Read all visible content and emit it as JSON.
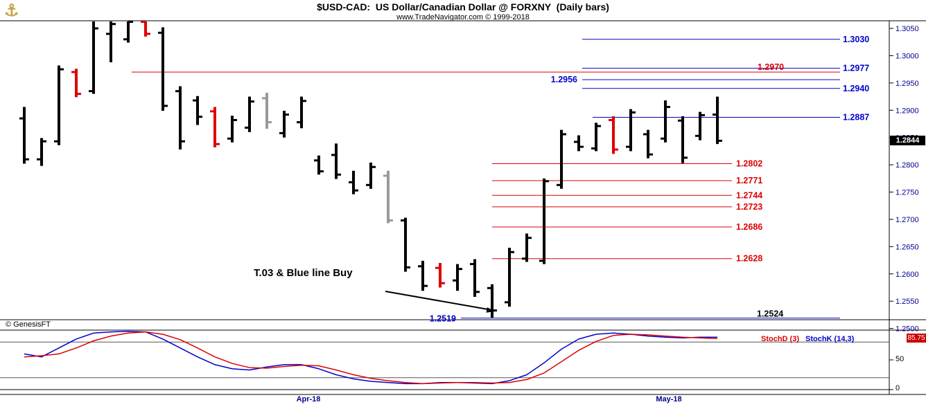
{
  "header": {
    "title": "$USD-CAD:  US Dollar/Canadian Dollar @ FORXNY  (Daily bars)",
    "subtitle": "www.TradeNavigator.com © 1999-2018"
  },
  "logo_icon": "⚓",
  "watermark": "© GenesisFT",
  "annotation": "T.03 & Blue line Buy",
  "price_badge": "1.2844",
  "stoch_panel": {
    "d_label": "StochD (3)",
    "k_label": "StochK (14,3)",
    "value": "85.75",
    "axis_labels": [
      "50",
      "0"
    ]
  },
  "x_axis_labels": [
    {
      "label": "Apr-18"
    },
    {
      "label": "May-18"
    }
  ],
  "y_axis_labels": [
    "1.3050",
    "1.3000",
    "1.2950",
    "1.2900",
    "1.2850",
    "1.2800",
    "1.2750",
    "1.2700",
    "1.2650",
    "1.2600",
    "1.2550",
    "1.2500"
  ],
  "colors": {
    "black_bar": "#000000",
    "red_bar": "#dd0000",
    "gray_bar": "#999999",
    "blue": "#0000cc",
    "red": "#dd0000",
    "axis_text": "#00008b",
    "price_badge_bg": "#000000",
    "stoch_badge_bg": "#cc0000"
  },
  "chart_data": [
    {
      "type": "ohlc-bar",
      "title": "$USD-CAD US Dollar/Canadian Dollar @ FORXNY (Daily bars)",
      "x_range": [
        "Apr-18",
        "May-18"
      ],
      "ylim": [
        1.2516,
        1.3064
      ],
      "bars_format": [
        "open",
        "high",
        "low",
        "close",
        "color(k=black,r=red,g=gray)"
      ],
      "bars": [
        [
          1.2885,
          1.2906,
          1.2802,
          1.281,
          "k"
        ],
        [
          1.281,
          1.2849,
          1.2798,
          1.2843,
          "k"
        ],
        [
          1.2843,
          1.2982,
          1.2836,
          1.2975,
          "k"
        ],
        [
          1.297,
          1.2976,
          1.2924,
          1.293,
          "r"
        ],
        [
          1.2935,
          1.3064,
          1.293,
          1.305,
          "k"
        ],
        [
          1.304,
          1.3064,
          1.2988,
          1.3058,
          "k"
        ],
        [
          1.303,
          1.3066,
          1.3024,
          1.3062,
          "k"
        ],
        [
          1.3062,
          1.3065,
          1.3035,
          1.304,
          "r"
        ],
        [
          1.3042,
          1.3052,
          1.2899,
          1.2908,
          "k"
        ],
        [
          1.2935,
          1.2944,
          1.2828,
          1.2843,
          "k"
        ],
        [
          1.2918,
          1.2926,
          1.2873,
          1.2888,
          "k"
        ],
        [
          1.2898,
          1.2906,
          1.2832,
          1.2838,
          "r"
        ],
        [
          1.2848,
          1.289,
          1.2841,
          1.2882,
          "k"
        ],
        [
          1.2868,
          1.2925,
          1.286,
          1.2916,
          "k"
        ],
        [
          1.2922,
          1.2932,
          1.2866,
          1.2878,
          "g"
        ],
        [
          1.2858,
          1.2899,
          1.285,
          1.2892,
          "k"
        ],
        [
          1.2878,
          1.2925,
          1.2867,
          1.2917,
          "k"
        ],
        [
          1.2808,
          1.2817,
          1.2782,
          1.2788,
          "k"
        ],
        [
          1.2818,
          1.2839,
          1.2774,
          1.2782,
          "k"
        ],
        [
          1.2768,
          1.2789,
          1.2746,
          1.2753,
          "k"
        ],
        [
          1.2763,
          1.2804,
          1.2756,
          1.2796,
          "k"
        ],
        [
          1.278,
          1.2789,
          1.2693,
          1.2698,
          "g"
        ],
        [
          1.2698,
          1.2703,
          1.2604,
          1.2612,
          "k"
        ],
        [
          1.2614,
          1.2624,
          1.2569,
          1.2578,
          "k"
        ],
        [
          1.2611,
          1.262,
          1.2575,
          1.2583,
          "r"
        ],
        [
          1.2588,
          1.2618,
          1.2569,
          1.2609,
          "k"
        ],
        [
          1.2618,
          1.2627,
          1.2558,
          1.2567,
          "k"
        ],
        [
          1.2574,
          1.2581,
          1.252,
          1.2533,
          "k"
        ],
        [
          1.2548,
          1.2648,
          1.254,
          1.264,
          "k"
        ],
        [
          1.2628,
          1.2674,
          1.2622,
          1.2666,
          "k"
        ],
        [
          1.2624,
          1.2775,
          1.2618,
          1.277,
          "k"
        ],
        [
          1.2763,
          1.2864,
          1.2756,
          1.2856,
          "k"
        ],
        [
          1.2842,
          1.2854,
          1.2825,
          1.2833,
          "k"
        ],
        [
          1.283,
          1.2877,
          1.2825,
          1.2871,
          "k"
        ],
        [
          1.2882,
          1.2889,
          1.282,
          1.2828,
          "r"
        ],
        [
          1.2833,
          1.2902,
          1.2825,
          1.2896,
          "k"
        ],
        [
          1.2856,
          1.2864,
          1.2812,
          1.2819,
          "k"
        ],
        [
          1.2848,
          1.2918,
          1.2841,
          1.2906,
          "k"
        ],
        [
          1.2881,
          1.2889,
          1.2803,
          1.2813,
          "k"
        ],
        [
          1.2853,
          1.2897,
          1.2845,
          1.2891,
          "k"
        ],
        [
          1.2892,
          1.2925,
          1.2838,
          1.2844,
          "k"
        ]
      ],
      "levels": [
        {
          "price": 1.303,
          "color": "blue",
          "x1": 840,
          "x2": 1212,
          "label": "1.3030",
          "label_x": 1216,
          "anchor": "start",
          "dy": 4
        },
        {
          "price": 1.2977,
          "color": "blue",
          "x1": 840,
          "x2": 1212,
          "label": "1.2977",
          "label_x": 1216,
          "anchor": "start",
          "dy": 4
        },
        {
          "price": 1.297,
          "color": "red",
          "x1": 190,
          "x2": 1212,
          "label": "1.2970",
          "label_x": 1112,
          "anchor": "middle",
          "dy": -3
        },
        {
          "price": 1.2956,
          "color": "blue",
          "x1": 840,
          "x2": 1212,
          "label": "1.2956",
          "label_x": 833,
          "anchor": "end",
          "dy": 4
        },
        {
          "price": 1.294,
          "color": "blue",
          "x1": 840,
          "x2": 1212,
          "label": "1.2940",
          "label_x": 1216,
          "anchor": "start",
          "dy": 4
        },
        {
          "price": 1.2887,
          "color": "blue",
          "x1": 855,
          "x2": 1212,
          "label": "1.2887",
          "label_x": 1216,
          "anchor": "start",
          "dy": 4
        },
        {
          "price": 1.2802,
          "color": "red",
          "x1": 710,
          "x2": 1056,
          "label": "1.2802",
          "label_x": 1062,
          "anchor": "start",
          "dy": 4
        },
        {
          "price": 1.2771,
          "color": "red",
          "x1": 710,
          "x2": 1056,
          "label": "1.2771",
          "label_x": 1062,
          "anchor": "start",
          "dy": 4
        },
        {
          "price": 1.2744,
          "color": "red",
          "x1": 710,
          "x2": 1056,
          "label": "1.2744",
          "label_x": 1062,
          "anchor": "start",
          "dy": 4
        },
        {
          "price": 1.2723,
          "color": "red",
          "x1": 710,
          "x2": 1056,
          "label": "1.2723",
          "label_x": 1062,
          "anchor": "start",
          "dy": 4
        },
        {
          "price": 1.2686,
          "color": "red",
          "x1": 710,
          "x2": 1056,
          "label": "1.2686",
          "label_x": 1062,
          "anchor": "start",
          "dy": 4
        },
        {
          "price": 1.2628,
          "color": "red",
          "x1": 710,
          "x2": 1056,
          "label": "1.2628",
          "label_x": 1062,
          "anchor": "start",
          "dy": 4
        },
        {
          "price": 1.2524,
          "color": "black",
          "no_line": true,
          "label": "1.2524",
          "label_x": 1092,
          "anchor": "start",
          "dy": 2
        },
        {
          "price": 1.2519,
          "color": "blue",
          "x1": 665,
          "x2": 1212,
          "label": "1.2519",
          "label_x": 658,
          "anchor": "end",
          "dy": 5
        }
      ]
    },
    {
      "type": "line",
      "title": "Stochastic",
      "ylim": [
        0,
        100
      ],
      "overbought": 80,
      "oversold": 20,
      "last_value_badge": 85.75,
      "series": [
        {
          "name": "StochK (14,3)",
          "color": "blue",
          "values": [
            60,
            55,
            70,
            85,
            95,
            97,
            98,
            97,
            85,
            70,
            55,
            42,
            35,
            33,
            38,
            42,
            42,
            35,
            25,
            18,
            14,
            12,
            10,
            10,
            12,
            12,
            11,
            10,
            15,
            25,
            45,
            68,
            85,
            93,
            95,
            93,
            90,
            88,
            87,
            88,
            88
          ]
        },
        {
          "name": "StochD (3)",
          "color": "red",
          "values": [
            55,
            57,
            60,
            70,
            82,
            90,
            95,
            97,
            93,
            84,
            70,
            55,
            44,
            37,
            36,
            39,
            41,
            40,
            33,
            25,
            19,
            15,
            12,
            10,
            11,
            12,
            12,
            11,
            12,
            17,
            28,
            47,
            66,
            81,
            91,
            93,
            92,
            90,
            88,
            87,
            85.75
          ]
        }
      ]
    }
  ]
}
